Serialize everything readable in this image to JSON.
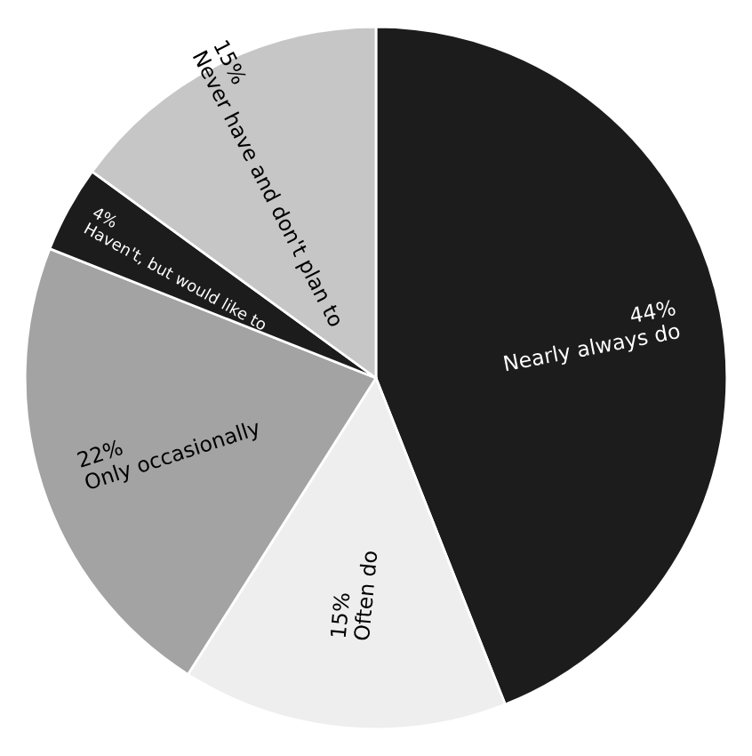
{
  "chart_data": {
    "type": "pie",
    "categories": [
      "Nearly always do",
      "Often do",
      "Only occasionally",
      "Haven't, but would like to",
      "Never have and don't plan to"
    ],
    "values": [
      44,
      15,
      22,
      4,
      15
    ],
    "value_labels": [
      "44%",
      "15%",
      "22%",
      "4%",
      "15%"
    ],
    "colors": [
      "#1c1c1c",
      "#eeeeee",
      "#a3a3a3",
      "#1c1c1c",
      "#c6c6c6"
    ]
  }
}
